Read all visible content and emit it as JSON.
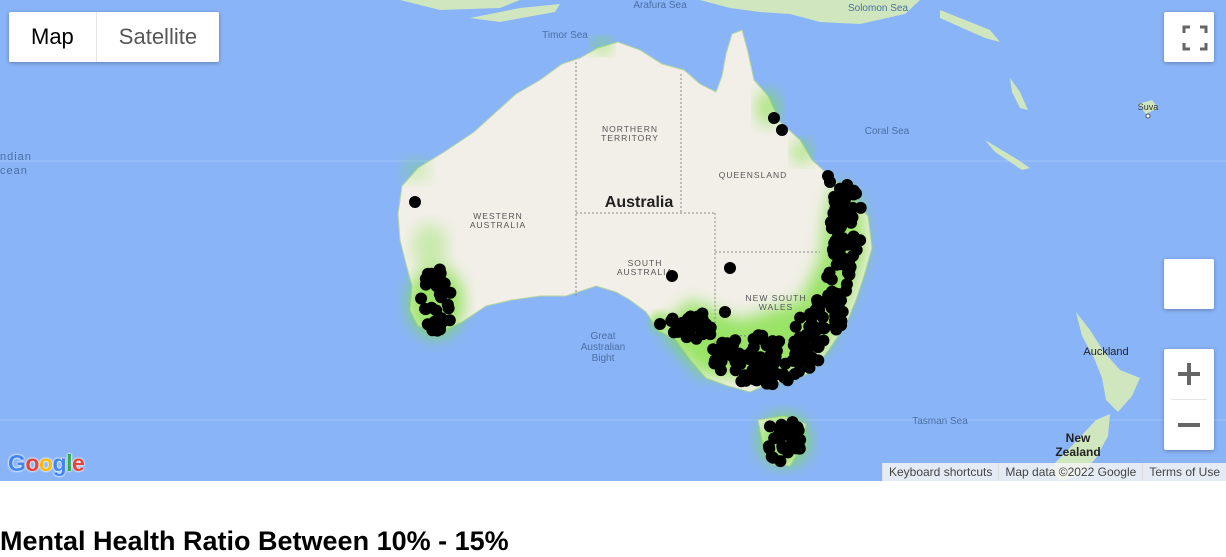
{
  "map_controls": {
    "map_label": "Map",
    "satellite_label": "Satellite"
  },
  "labels": {
    "arafura_sea": "Arafura Sea",
    "solomon_sea": "Solomon Sea",
    "timor_sea": "Timor Sea",
    "coral_sea": "Coral Sea",
    "suva": "Suva",
    "indian_ocean_1": "ndian",
    "indian_ocean_2": "cean",
    "northern_territory_1": "NORTHERN",
    "northern_territory_2": "TERRITORY",
    "queensland": "QUEENSLAND",
    "australia": "Australia",
    "western_australia_1": "WESTERN",
    "western_australia_2": "AUSTRALIA",
    "south_australia_1": "SOUTH",
    "south_australia_2": "AUSTRALIA",
    "new_south_wales_1": "NEW SOUTH",
    "new_south_wales_2": "WALES",
    "great_australian_bight_1": "Great",
    "great_australian_bight_2": "Australian",
    "great_australian_bight_3": "Bight",
    "auckland": "Auckland",
    "tasman_sea": "Tasman Sea",
    "new_zealand_1": "New",
    "new_zealand_2": "Zealand"
  },
  "footer": {
    "keyboard_shortcuts": "Keyboard shortcuts",
    "map_data": "Map data ©2022 Google",
    "terms": "Terms of Use"
  },
  "logo": "Google",
  "heading": "Mental Health Ratio Between 10% - 15%",
  "colors": {
    "water": "#8ab4f8",
    "land": "#f2efe9",
    "heat": "#7be03a",
    "marker": "#000000"
  }
}
